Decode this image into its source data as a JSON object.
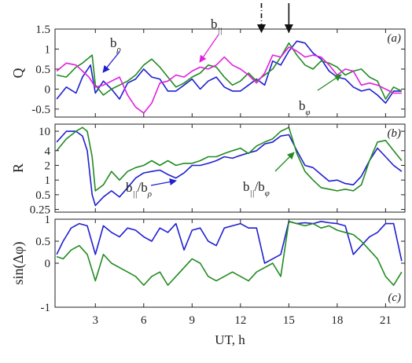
{
  "chart_data": {
    "type": "line",
    "xlabel": "UT, h",
    "xlim": [
      0.5,
      22.2
    ],
    "xticks": [
      3,
      6,
      9,
      12,
      15,
      18,
      21
    ],
    "colors": {
      "blue": "#1f1fd0",
      "green": "#228b22",
      "magenta": "#e020e0",
      "axis": "#222222"
    },
    "arrows_top": [
      {
        "x": 13.3,
        "style": "dashdot"
      },
      {
        "x": 15.0,
        "style": "solid"
      }
    ],
    "panels": [
      {
        "id": "a",
        "label": "(a)",
        "ylabel": "Q",
        "scale": "linear",
        "ylim": [
          -0.7,
          1.5
        ],
        "yticks": [
          -0.5,
          0,
          0.5,
          1,
          1.5
        ],
        "yticklabels": [
          "-0.5",
          "0",
          "0.5",
          "1",
          "1.5"
        ],
        "annotations": [
          {
            "main": "b",
            "sub": "ρ",
            "color": "blue"
          },
          {
            "main": "b",
            "sub": "||",
            "color": "magenta"
          },
          {
            "main": "b",
            "sub": "φ",
            "color": "green"
          }
        ],
        "series": [
          {
            "color": "blue",
            "x": [
              0.6,
              1.2,
              1.8,
              2.2,
              2.7,
              3.0,
              3.5,
              4.0,
              4.5,
              5.0,
              5.5,
              6.0,
              6.5,
              7.0,
              7.5,
              8.0,
              8.5,
              9.0,
              9.5,
              10.0,
              10.5,
              11.0,
              11.5,
              12.0,
              12.5,
              13.0,
              13.5,
              14.0,
              14.5,
              15.0,
              15.5,
              16.0,
              16.5,
              17.0,
              17.5,
              18.0,
              18.5,
              19.0,
              19.5,
              20.0,
              20.5,
              21.0,
              21.5,
              22.0
            ],
            "y": [
              -0.25,
              0.05,
              -0.1,
              0.3,
              0.6,
              -0.1,
              0.2,
              0.0,
              -0.25,
              0.15,
              0.25,
              0.5,
              0.3,
              0.25,
              -0.05,
              -0.05,
              0.1,
              0.25,
              0.0,
              0.2,
              0.3,
              0.05,
              -0.05,
              -0.05,
              0.1,
              0.25,
              0.1,
              0.7,
              0.6,
              0.95,
              1.2,
              1.15,
              0.9,
              0.75,
              0.45,
              0.3,
              0.25,
              0.05,
              -0.05,
              0.0,
              -0.15,
              -0.35,
              -0.05,
              -0.05
            ]
          },
          {
            "color": "green",
            "x": [
              0.6,
              1.2,
              1.8,
              2.2,
              2.5,
              2.8,
              3.0,
              3.5,
              4.0,
              4.5,
              5.0,
              5.5,
              6.0,
              6.5,
              7.0,
              7.5,
              8.0,
              8.5,
              9.0,
              9.5,
              10.0,
              10.5,
              11.0,
              11.5,
              12.0,
              12.5,
              13.0,
              13.5,
              14.0,
              14.5,
              15.0,
              15.5,
              16.0,
              16.5,
              17.0,
              17.5,
              18.0,
              18.5,
              19.0,
              19.5,
              20.0,
              20.5,
              21.0,
              21.5,
              22.0
            ],
            "y": [
              0.35,
              0.3,
              0.55,
              0.65,
              0.75,
              0.85,
              0.1,
              -0.15,
              0.0,
              0.1,
              0.2,
              0.35,
              0.6,
              0.75,
              0.55,
              0.3,
              0.05,
              0.15,
              0.3,
              0.4,
              0.6,
              0.55,
              0.3,
              0.1,
              0.2,
              0.4,
              0.2,
              0.35,
              0.5,
              0.8,
              1.15,
              0.85,
              0.6,
              0.5,
              0.7,
              0.65,
              0.55,
              0.35,
              0.45,
              0.5,
              0.3,
              0.2,
              -0.25,
              0.05,
              -0.05
            ]
          },
          {
            "color": "magenta",
            "x": [
              0.6,
              1.2,
              1.8,
              2.2,
              2.6,
              3.0,
              3.5,
              4.0,
              4.5,
              5.0,
              5.5,
              6.0,
              6.5,
              7.0,
              7.5,
              8.0,
              8.5,
              9.0,
              9.5,
              10.0,
              10.5,
              11.0,
              11.5,
              12.0,
              12.5,
              13.0,
              13.5,
              14.0,
              14.5,
              15.0,
              15.5,
              16.0,
              16.5,
              17.0,
              17.5,
              18.0,
              18.5,
              19.0,
              19.5,
              20.0,
              20.5,
              21.0,
              21.5,
              22.0
            ],
            "y": [
              0.45,
              0.65,
              0.6,
              0.45,
              0.3,
              0.05,
              0.1,
              0.2,
              0.3,
              -0.15,
              -0.45,
              -0.6,
              -0.35,
              0.15,
              0.2,
              0.35,
              0.3,
              0.45,
              0.55,
              0.5,
              0.6,
              0.8,
              0.6,
              0.5,
              0.35,
              0.15,
              0.4,
              0.85,
              0.8,
              1.05,
              0.95,
              0.8,
              0.85,
              0.8,
              0.6,
              0.35,
              0.5,
              0.45,
              0.1,
              0.15,
              0.1,
              0.0,
              -0.1,
              -0.1
            ]
          }
        ]
      },
      {
        "id": "b",
        "label": "(b)",
        "ylabel": "R",
        "scale": "log",
        "ylim": [
          0.22,
          14
        ],
        "yticks": [
          0.25,
          0.5,
          1,
          2,
          4,
          10
        ],
        "yticklabels": [
          "0.25",
          "0.5",
          "1",
          "2",
          "4",
          "10"
        ],
        "annotations": [
          {
            "main": "b",
            "sub": "||",
            "main2": "/b",
            "sub2": "ρ",
            "color": "blue"
          },
          {
            "main": "b",
            "sub": "||",
            "main2": "/b",
            "sub2": "φ",
            "color": "green"
          }
        ],
        "series": [
          {
            "color": "blue",
            "x": [
              0.6,
              1.2,
              1.8,
              2.2,
              2.5,
              2.8,
              3.0,
              3.5,
              4.0,
              4.5,
              5.0,
              5.5,
              6.0,
              6.5,
              7.0,
              7.5,
              8.0,
              8.5,
              9.0,
              9.5,
              10.0,
              10.5,
              11.0,
              11.5,
              12.0,
              12.5,
              13.0,
              13.5,
              14.0,
              14.5,
              15.0,
              15.5,
              16.0,
              16.5,
              17.0,
              17.5,
              18.0,
              18.5,
              19.0,
              19.5,
              20.0,
              20.5,
              21.0,
              21.5,
              22.0
            ],
            "y": [
              6,
              10,
              10,
              8,
              4,
              0.5,
              0.3,
              0.45,
              0.6,
              0.45,
              0.7,
              1.1,
              1.4,
              1.5,
              1.6,
              1.3,
              1.1,
              1.4,
              2.0,
              2.0,
              2.2,
              2.5,
              3.0,
              2.8,
              3.2,
              3.6,
              4.0,
              5.5,
              6.0,
              8.0,
              8.5,
              4.0,
              2.0,
              1.8,
              1.3,
              0.95,
              1.0,
              0.85,
              0.8,
              1.2,
              2.5,
              4.5,
              3.0,
              2.0,
              1.5
            ]
          },
          {
            "color": "green",
            "x": [
              0.6,
              1.2,
              1.8,
              2.2,
              2.5,
              2.8,
              3.0,
              3.5,
              4.0,
              4.5,
              5.0,
              5.5,
              6.0,
              6.5,
              7.0,
              7.5,
              8.0,
              8.5,
              9.0,
              9.5,
              10.0,
              10.5,
              11.0,
              11.5,
              12.0,
              12.5,
              13.0,
              13.5,
              14.0,
              14.5,
              15.0,
              15.5,
              16.0,
              16.5,
              17.0,
              17.5,
              18.0,
              18.5,
              19.0,
              19.5,
              20.0,
              20.5,
              21.0,
              21.5,
              22.0
            ],
            "y": [
              4,
              7,
              10,
              12,
              10,
              3,
              0.6,
              0.8,
              1.5,
              1.0,
              1.5,
              1.8,
              2.0,
              2.5,
              2.0,
              2.5,
              2.0,
              2.2,
              2.2,
              2.5,
              3.0,
              3.0,
              3.5,
              4.0,
              4.5,
              3.5,
              5.0,
              6.0,
              7.0,
              10.0,
              12.0,
              3.5,
              1.5,
              1.0,
              0.7,
              0.65,
              0.6,
              0.65,
              0.6,
              0.8,
              2.5,
              6.0,
              6.5,
              4.0,
              2.5
            ]
          }
        ]
      },
      {
        "id": "c",
        "label": "(c)",
        "ylabel": "sin(Δφ)",
        "scale": "linear",
        "ylim": [
          -1,
          1
        ],
        "yticks": [
          -1,
          0,
          0.5,
          1
        ],
        "yticklabels": [
          "-1",
          "0",
          "0.5",
          "1"
        ],
        "annotations": [],
        "series": [
          {
            "color": "blue",
            "x": [
              0.6,
              1.0,
              1.5,
              2.0,
              2.5,
              3.0,
              3.5,
              4.0,
              4.5,
              5.0,
              5.5,
              6.0,
              6.5,
              7.0,
              7.5,
              8.0,
              8.5,
              9.0,
              9.5,
              10.0,
              10.5,
              11.0,
              11.5,
              12.0,
              12.5,
              13.0,
              13.5,
              14.0,
              14.5,
              15.0,
              15.5,
              16.0,
              16.5,
              17.0,
              17.5,
              18.0,
              18.5,
              19.0,
              19.5,
              20.0,
              20.5,
              21.0,
              21.5,
              22.0
            ],
            "y": [
              0.2,
              0.5,
              0.8,
              0.9,
              0.85,
              0.2,
              0.85,
              0.7,
              0.6,
              0.8,
              0.75,
              0.6,
              0.5,
              0.8,
              0.7,
              0.9,
              0.3,
              0.75,
              0.8,
              0.5,
              0.4,
              0.8,
              0.85,
              0.9,
              0.8,
              0.8,
              0.0,
              0.1,
              0.2,
              0.95,
              0.9,
              0.92,
              0.9,
              0.95,
              0.92,
              0.9,
              0.85,
              0.2,
              0.4,
              0.6,
              0.7,
              0.9,
              0.9,
              0.05
            ]
          },
          {
            "color": "green",
            "x": [
              0.6,
              1.0,
              1.5,
              2.0,
              2.5,
              3.0,
              3.5,
              4.0,
              4.5,
              5.0,
              5.5,
              6.0,
              6.5,
              7.0,
              7.5,
              8.0,
              8.5,
              9.0,
              9.5,
              10.0,
              10.5,
              11.0,
              11.5,
              12.0,
              12.5,
              13.0,
              13.5,
              14.0,
              14.5,
              15.0,
              15.5,
              16.0,
              16.5,
              17.0,
              17.5,
              18.0,
              18.5,
              19.0,
              19.5,
              20.0,
              20.5,
              21.0,
              21.5,
              22.0
            ],
            "y": [
              0.15,
              0.1,
              0.3,
              0.4,
              0.2,
              -0.4,
              0.2,
              0.0,
              -0.1,
              -0.2,
              -0.3,
              -0.5,
              -0.3,
              -0.2,
              -0.5,
              -0.3,
              -0.1,
              0.1,
              0.0,
              -0.3,
              -0.4,
              -0.3,
              -0.2,
              -0.3,
              -0.4,
              -0.2,
              -0.1,
              0.0,
              -0.3,
              0.95,
              0.9,
              0.85,
              0.9,
              0.8,
              0.85,
              0.75,
              0.7,
              0.65,
              0.5,
              0.3,
              0.1,
              -0.3,
              -0.5,
              -0.2
            ]
          }
        ]
      }
    ]
  }
}
